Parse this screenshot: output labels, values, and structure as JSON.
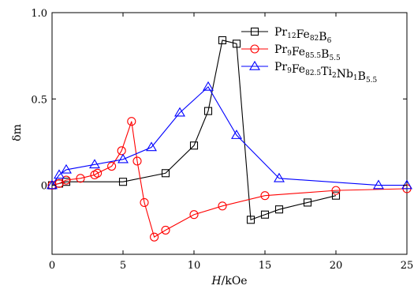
{
  "chart_data": {
    "type": "line",
    "xlabel_var": "H",
    "xlabel_unit": "/kOe",
    "ylabel": "δm",
    "xlim": [
      0,
      25
    ],
    "ylim": [
      -0.4,
      1.0
    ],
    "xticks": [
      0,
      5,
      10,
      15,
      20,
      25
    ],
    "xtick_labels": [
      "0",
      "5",
      "10",
      "15",
      "20",
      "25"
    ],
    "yticks": [
      0,
      0.5,
      1.0
    ],
    "ytick_labels": [
      "0",
      "0.5",
      "1.0"
    ],
    "grid": false,
    "legend_position": "top-right",
    "series": [
      {
        "name": "Pr12Fe82B6",
        "name_parts": [
          [
            "Pr",
            ""
          ],
          [
            "12",
            "sub"
          ],
          [
            "Fe",
            ""
          ],
          [
            "82",
            "sub"
          ],
          [
            "B",
            ""
          ],
          [
            "6",
            "sub"
          ]
        ],
        "marker": "square",
        "color": "#000000",
        "x": [
          0,
          0.5,
          1,
          5,
          8,
          10,
          11,
          12,
          13,
          14,
          15,
          16,
          18,
          20
        ],
        "y": [
          0,
          0.01,
          0.02,
          0.02,
          0.07,
          0.23,
          0.43,
          0.84,
          0.82,
          -0.2,
          -0.17,
          -0.14,
          -0.1,
          -0.06
        ]
      },
      {
        "name": "Pr9Fe85.5B5.5",
        "name_parts": [
          [
            "Pr",
            ""
          ],
          [
            "9",
            "sub"
          ],
          [
            "Fe",
            ""
          ],
          [
            "85.5",
            "sub"
          ],
          [
            "B",
            ""
          ],
          [
            "5.5",
            "sub"
          ]
        ],
        "marker": "circle",
        "color": "#ff0000",
        "x": [
          0,
          0.5,
          1,
          2,
          3,
          3.2,
          4.2,
          4.9,
          5.6,
          6,
          6.5,
          7.2,
          8,
          10,
          12,
          15,
          20,
          25
        ],
        "y": [
          0,
          0.01,
          0.03,
          0.04,
          0.06,
          0.07,
          0.11,
          0.2,
          0.37,
          0.14,
          -0.1,
          -0.3,
          -0.26,
          -0.17,
          -0.12,
          -0.06,
          -0.03,
          -0.02
        ]
      },
      {
        "name": "Pr9Fe82.5Ti2Nb1B5.5",
        "name_parts": [
          [
            "Pr",
            ""
          ],
          [
            "9",
            "sub"
          ],
          [
            "Fe",
            ""
          ],
          [
            "82.5",
            "sub"
          ],
          [
            "Ti",
            ""
          ],
          [
            "2",
            "sub"
          ],
          [
            "Nb",
            ""
          ],
          [
            "1",
            "sub"
          ],
          [
            "B",
            ""
          ],
          [
            "5.5",
            "sub"
          ]
        ],
        "marker": "triangle",
        "color": "#0000ff",
        "x": [
          0,
          0.5,
          1,
          3,
          5,
          7,
          9,
          11,
          13,
          16,
          23,
          25
        ],
        "y": [
          0,
          0.06,
          0.09,
          0.12,
          0.15,
          0.22,
          0.42,
          0.57,
          0.29,
          0.04,
          0,
          0
        ]
      }
    ]
  }
}
